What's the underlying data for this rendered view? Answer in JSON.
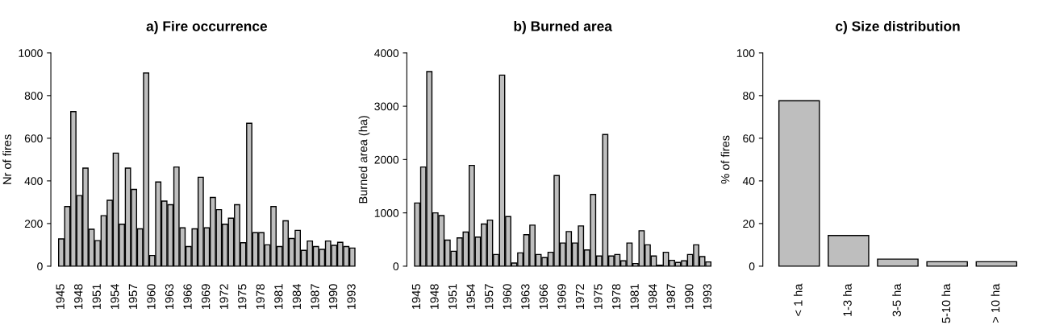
{
  "chart_data": [
    {
      "type": "bar",
      "title": "a) Fire occurrence",
      "ylabel": "Nr of fires",
      "categories": [
        "1945",
        null,
        null,
        "1948",
        null,
        null,
        "1951",
        null,
        null,
        "1954",
        null,
        null,
        "1957",
        null,
        null,
        "1960",
        null,
        null,
        "1963",
        null,
        null,
        "1966",
        null,
        null,
        "1969",
        null,
        null,
        "1972",
        null,
        null,
        "1975",
        null,
        null,
        "1978",
        null,
        null,
        "1981",
        null,
        null,
        "1984",
        null,
        null,
        "1987",
        null,
        null,
        "1990",
        null,
        null,
        "1993"
      ],
      "series": [
        {
          "color": "#bebebe",
          "values": [
            128,
            280,
            725,
            331,
            460,
            173,
            120,
            237,
            309,
            530,
            197,
            460,
            360,
            175,
            906,
            50,
            395,
            305,
            288,
            465,
            180,
            92,
            175,
            417,
            180,
            322,
            265,
            197,
            225,
            288,
            110,
            670,
            157,
            157,
            100,
            280,
            92,
            213,
            130,
            168,
            74,
            118,
            92,
            79,
            118,
            98,
            112,
            92,
            85
          ]
        }
      ],
      "ylim": [
        0,
        1000
      ],
      "yticks": [
        0,
        200,
        400,
        600,
        800,
        1000
      ],
      "grid": false,
      "legend": false
    },
    {
      "type": "bar",
      "title": "b) Burned area",
      "ylabel": "Burned area (ha)",
      "categories": [
        "1945",
        null,
        null,
        "1948",
        null,
        null,
        "1951",
        null,
        null,
        "1954",
        null,
        null,
        "1957",
        null,
        null,
        "1960",
        null,
        null,
        "1963",
        null,
        null,
        "1966",
        null,
        null,
        "1969",
        null,
        null,
        "1972",
        null,
        null,
        "1975",
        null,
        null,
        "1978",
        null,
        null,
        "1981",
        null,
        null,
        "1984",
        null,
        null,
        "1987",
        null,
        null,
        "1990",
        null,
        null,
        "1993"
      ],
      "series": [
        {
          "color": "#bebebe",
          "values": [
            1185,
            1860,
            3650,
            1000,
            950,
            490,
            280,
            530,
            640,
            1890,
            545,
            790,
            865,
            220,
            3585,
            930,
            60,
            250,
            590,
            770,
            220,
            160,
            260,
            1700,
            435,
            650,
            435,
            755,
            305,
            1345,
            190,
            2470,
            190,
            220,
            100,
            435,
            50,
            665,
            400,
            190,
            20,
            260,
            110,
            70,
            100,
            220,
            400,
            180,
            80
          ]
        }
      ],
      "ylim": [
        0,
        4000
      ],
      "yticks": [
        0,
        1000,
        2000,
        3000,
        4000
      ],
      "grid": false,
      "legend": false
    },
    {
      "type": "bar",
      "title": "c) Size distribution",
      "ylabel": "% of fires",
      "categories": [
        "< 1 ha",
        "1-3 ha",
        "3-5 ha",
        "5-10 ha",
        "> 10 ha"
      ],
      "series": [
        {
          "color": "#bebebe",
          "values": [
            77.6,
            14.4,
            3.3,
            2.1,
            2.1
          ]
        }
      ],
      "ylim": [
        0,
        100
      ],
      "yticks": [
        0,
        20,
        40,
        60,
        80,
        100
      ],
      "grid": false,
      "legend": false
    }
  ]
}
